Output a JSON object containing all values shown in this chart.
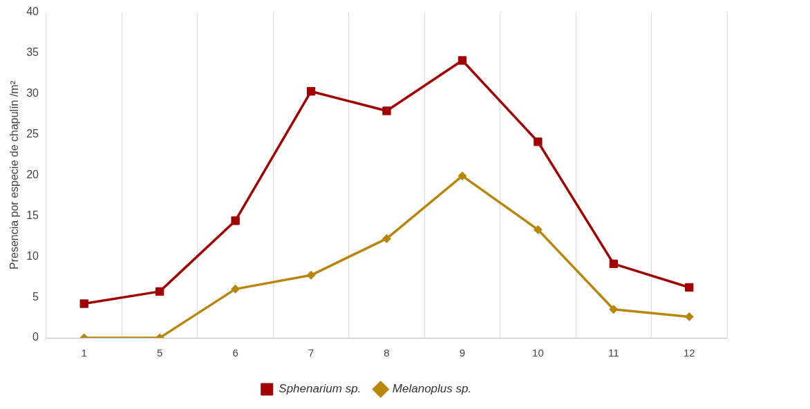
{
  "chart_data": {
    "type": "line",
    "ylabel": "Presencia por especie de chapulín /m²",
    "categories": [
      "1",
      "5",
      "6",
      "7",
      "8",
      "9",
      "10",
      "11",
      "12"
    ],
    "series": [
      {
        "name": "Sphenarium sp.",
        "color": "#a00000",
        "marker": "square",
        "values": [
          4.2,
          5.7,
          14.4,
          30.3,
          27.9,
          34.1,
          24.1,
          9.1,
          6.2
        ]
      },
      {
        "name": "Melanoplus sp.",
        "color": "#b8860b",
        "marker": "diamond",
        "values": [
          0,
          0,
          6.0,
          7.7,
          12.2,
          19.9,
          13.3,
          3.5,
          2.6
        ]
      }
    ],
    "ylim": [
      0,
      40
    ],
    "yticks": [
      0,
      5,
      10,
      15,
      20,
      25,
      30,
      35,
      40
    ],
    "grid": "x",
    "legend": "bottom",
    "line_style": "solid"
  }
}
